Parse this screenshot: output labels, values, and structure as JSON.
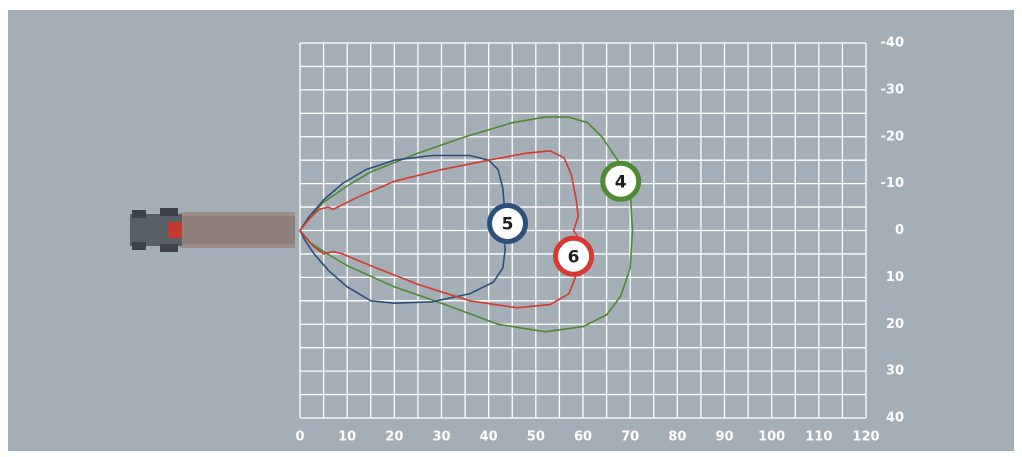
{
  "chart_data": {
    "type": "line",
    "xlim": [
      0,
      120
    ],
    "ylim": [
      -40,
      40
    ],
    "xticks": [
      0,
      10,
      20,
      30,
      40,
      50,
      60,
      70,
      80,
      90,
      100,
      110,
      120
    ],
    "yticks": [
      -40,
      -30,
      -20,
      -10,
      0,
      10,
      20,
      30,
      40
    ],
    "y_inverted": true,
    "grid": true,
    "series": [
      {
        "name": "4",
        "color": "#4d8a33",
        "x": [
          0,
          2,
          5,
          10,
          15,
          25,
          35,
          45,
          52,
          57,
          61,
          64,
          66,
          68,
          70,
          70.5,
          70,
          68,
          65,
          60,
          52,
          42,
          30,
          20,
          10,
          5,
          2,
          0
        ],
        "y": [
          0,
          -3,
          -6,
          -9.5,
          -12.5,
          -16.5,
          -20,
          -23,
          -24.2,
          -24.2,
          -23,
          -20,
          -17,
          -14,
          -8,
          0,
          8,
          14,
          18,
          20.5,
          21.6,
          20,
          15.5,
          12,
          7.5,
          4.5,
          2.5,
          0
        ]
      },
      {
        "name": "5",
        "color": "#2c4f7c",
        "x": [
          0,
          2,
          5,
          9,
          14,
          20,
          28,
          36,
          40,
          42,
          43,
          43.5,
          43,
          43.5,
          43,
          41,
          36,
          28,
          20,
          15,
          10,
          6,
          3,
          1,
          0
        ],
        "y": [
          0,
          -3,
          -6.5,
          -10,
          -13,
          -15,
          -16,
          -16,
          -15,
          -13,
          -9,
          -3,
          0,
          4,
          8,
          11,
          13.5,
          15.2,
          15.5,
          15,
          12,
          8.5,
          5,
          2,
          0
        ]
      },
      {
        "name": "6",
        "color": "#d6392d",
        "x": [
          0,
          2,
          4,
          6,
          7,
          8,
          12,
          20,
          30,
          40,
          48,
          53,
          56,
          57.5,
          58.5,
          59,
          58.5,
          58,
          59,
          59,
          58,
          57,
          53,
          46,
          36,
          25,
          15,
          9,
          7,
          5,
          3,
          0
        ],
        "y": [
          0,
          -2.5,
          -4.5,
          -5,
          -4.5,
          -5,
          -7,
          -10.5,
          -13,
          -15,
          -16.5,
          -17,
          -15.5,
          -12,
          -7,
          -3,
          -1.5,
          0,
          1.5,
          8,
          11,
          13.5,
          15.8,
          16.5,
          15,
          11.5,
          7.5,
          5,
          4.5,
          5,
          3.5,
          0
        ]
      }
    ]
  }
}
